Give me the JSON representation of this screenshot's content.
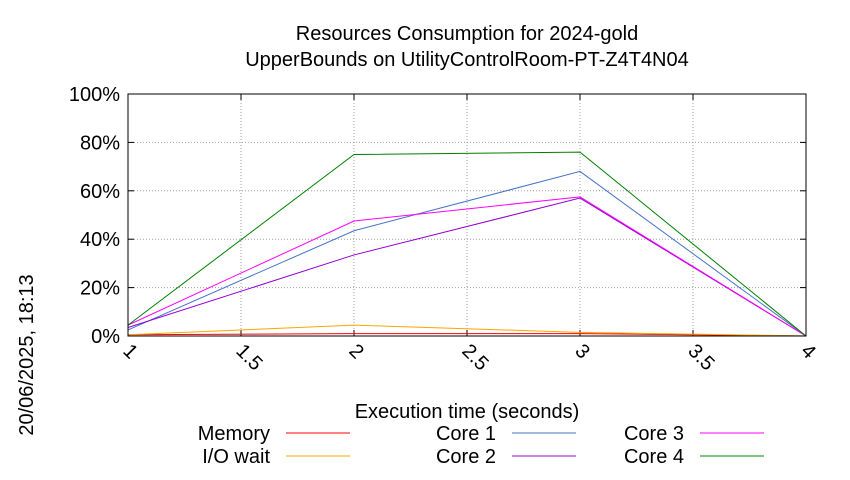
{
  "timestamp": "20/06/2025, 18:13",
  "chart_data": {
    "type": "line",
    "title_line1": "Resources Consumption for 2024-gold",
    "title_line2": "UpperBounds on UtilityControlRoom-PT-Z4T4N04",
    "xlabel": "Execution time (seconds)",
    "ylabel": "",
    "xlim": [
      1,
      4
    ],
    "ylim": [
      0,
      100
    ],
    "x_ticks": [
      "1",
      "1.5",
      "2",
      "2.5",
      "3",
      "3.5",
      "4"
    ],
    "y_ticks": [
      "0%",
      "20%",
      "40%",
      "60%",
      "80%",
      "100%"
    ],
    "grid": true,
    "legend_position": "bottom",
    "series": [
      {
        "name": "Memory",
        "color": "#ff0000",
        "x": [
          1,
          2,
          3,
          4
        ],
        "values": [
          0.5,
          1,
          1,
          0
        ]
      },
      {
        "name": "I/O wait",
        "color": "#ffa500",
        "x": [
          1,
          2,
          3,
          4
        ],
        "values": [
          0.5,
          4.5,
          1.5,
          0
        ]
      },
      {
        "name": "Core 1",
        "color": "#4472c4",
        "x": [
          1,
          2,
          3,
          4
        ],
        "values": [
          2.5,
          43.5,
          68,
          0
        ]
      },
      {
        "name": "Core 2",
        "color": "#9400d3",
        "x": [
          1,
          2,
          3,
          4
        ],
        "values": [
          3.5,
          33.5,
          57,
          0
        ]
      },
      {
        "name": "Core 3",
        "color": "#ff00ff",
        "x": [
          1,
          2,
          3,
          4
        ],
        "values": [
          4.5,
          47.5,
          57.5,
          0
        ]
      },
      {
        "name": "Core 4",
        "color": "#008000",
        "x": [
          1,
          2,
          3,
          4
        ],
        "values": [
          4.5,
          75,
          76,
          0
        ]
      }
    ]
  }
}
